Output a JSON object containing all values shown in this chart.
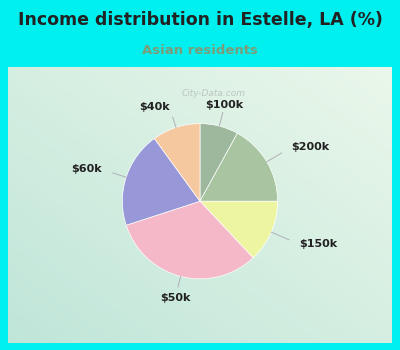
{
  "title": "Income distribution in Estelle, LA (%)",
  "subtitle": "Asian residents",
  "title_color": "#222222",
  "subtitle_color": "#7a9e7a",
  "background_outer": "#00EFEF",
  "slices": [
    {
      "label": "$100k",
      "value": 8,
      "color": "#9db89d"
    },
    {
      "label": "$200k",
      "value": 17,
      "color": "#a8c4a0"
    },
    {
      "label": "$150k",
      "value": 13,
      "color": "#eef5a0"
    },
    {
      "label": "$50k",
      "value": 32,
      "color": "#f5b8c8"
    },
    {
      "label": "$60k",
      "value": 20,
      "color": "#9898d8"
    },
    {
      "label": "$40k",
      "value": 10,
      "color": "#f5c8a0"
    }
  ],
  "startangle": 90,
  "figsize": [
    4.0,
    3.5
  ],
  "dpi": 100
}
